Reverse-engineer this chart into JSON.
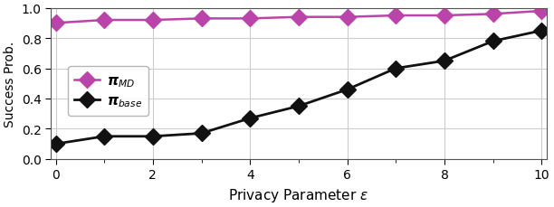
{
  "x": [
    0,
    1,
    2,
    3,
    4,
    5,
    6,
    7,
    8,
    9,
    10
  ],
  "y_md": [
    0.9,
    0.92,
    0.92,
    0.93,
    0.93,
    0.94,
    0.94,
    0.95,
    0.95,
    0.96,
    0.98
  ],
  "y_base": [
    0.1,
    0.15,
    0.15,
    0.17,
    0.27,
    0.35,
    0.46,
    0.6,
    0.65,
    0.78,
    0.85
  ],
  "color_md": "#bb44aa",
  "color_base": "#111111",
  "xlabel": "Privacy Parameter $\\epsilon$",
  "ylabel": "Success Prob.",
  "xlim": [
    -0.1,
    10.1
  ],
  "ylim": [
    0.0,
    1.0
  ],
  "xticks": [
    0,
    2,
    4,
    6,
    8,
    10
  ],
  "yticks": [
    0.0,
    0.2,
    0.4,
    0.6,
    0.8,
    1.0
  ],
  "legend_label_md": "$\\boldsymbol{\\pi}_{MD}$",
  "legend_label_base": "$\\boldsymbol{\\pi}_{base}$",
  "figsize": [
    6.12,
    2.3
  ],
  "dpi": 100,
  "grid_color": "#cccccc",
  "marker_size": 9,
  "linewidth_md": 1.8,
  "linewidth_base": 2.0
}
